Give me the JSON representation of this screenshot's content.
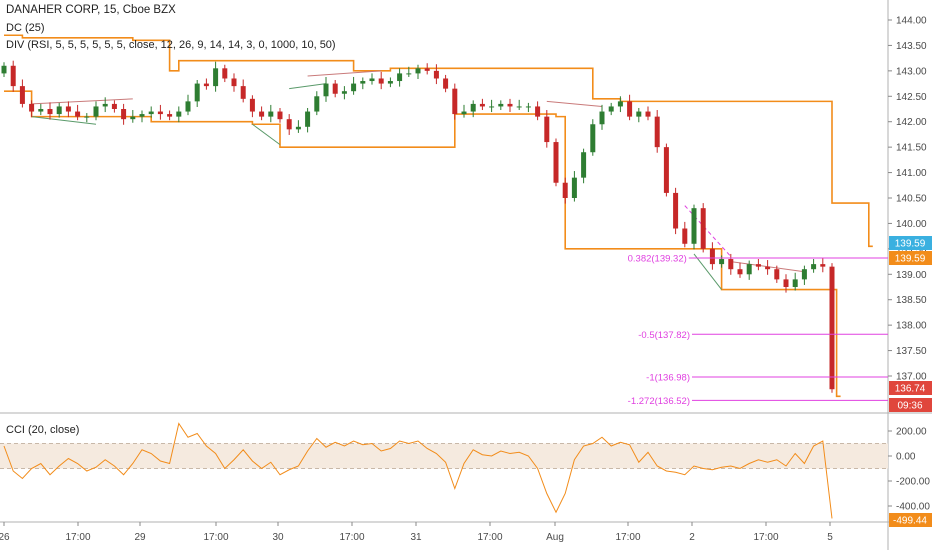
{
  "legend": {
    "symbol": "DANAHER CORP, 15, Cboe BZX",
    "dc": "DC (25)",
    "div": "DIV (RSI, 5, 5, 5, 5, 5, 5, close, 12, 26, 9, 14, 14, 3, 0, 1000, 10, 50)",
    "cci": "CCI (20, close)"
  },
  "colors": {
    "up": "#2e7d32",
    "down": "#c62828",
    "donchian": "#f28c1a",
    "fib": "#e040e0",
    "cci": "#f28c1a",
    "cci_band": "#f5eadf",
    "price_badge": "#e0463c",
    "last_badge": "#3ab0e0",
    "dc_badge": "#f28c1a",
    "divergence_bear": "#c97a7a",
    "divergence_bull": "#5a9a6a"
  },
  "chart_data": [
    {
      "type": "candlestick",
      "x_ticks": [
        "26",
        "17:00",
        "29",
        "17:00",
        "30",
        "17:00",
        "31",
        "17:00",
        "Aug",
        "17:00",
        "2",
        "17:00",
        "5"
      ],
      "y_ticks": [
        "144.00",
        "143.50",
        "143.00",
        "142.50",
        "142.00",
        "141.50",
        "141.00",
        "140.50",
        "140.00",
        "139.50",
        "139.00",
        "138.50",
        "138.00",
        "137.50",
        "137.00"
      ],
      "ylim": [
        136.35,
        144.25
      ],
      "close_samples": [
        143.1,
        142.7,
        142.35,
        142.2,
        142.25,
        142.15,
        142.3,
        142.2,
        142.1,
        142.1,
        142.3,
        142.35,
        142.25,
        142.05,
        142.1,
        142.15,
        142.2,
        142.15,
        142.1,
        142.2,
        142.4,
        142.75,
        142.7,
        143.05,
        142.85,
        142.7,
        142.45,
        142.2,
        142.1,
        142.2,
        142.05,
        141.85,
        141.9,
        142.2,
        142.5,
        142.75,
        142.55,
        142.6,
        142.75,
        142.8,
        142.85,
        142.75,
        142.8,
        142.95,
        142.95,
        143.05,
        143.0,
        142.85,
        142.65,
        142.15,
        142.2,
        142.35,
        142.3,
        142.3,
        142.35,
        142.3,
        142.3,
        142.3,
        142.1,
        141.6,
        140.8,
        140.5,
        140.9,
        141.4,
        141.95,
        142.2,
        142.3,
        142.4,
        142.1,
        142.2,
        142.1,
        141.5,
        140.6,
        139.9,
        139.6,
        140.3,
        139.5,
        139.2,
        139.3,
        139.1,
        139.0,
        139.2,
        139.15,
        139.1,
        138.9,
        138.75,
        138.9,
        139.1,
        139.2,
        139.15,
        136.74
      ],
      "donchian": {
        "upper": [
          [
            0,
            143.7
          ],
          [
            2,
            143.65
          ],
          [
            14,
            143.6
          ],
          [
            18,
            143.0
          ],
          [
            19,
            143.2
          ],
          [
            35,
            143.2
          ],
          [
            38,
            143.0
          ],
          [
            42,
            143.05
          ],
          [
            61,
            143.05
          ],
          [
            64,
            142.45
          ],
          [
            67,
            142.4
          ],
          [
            89,
            142.4
          ],
          [
            90,
            140.4
          ],
          [
            92,
            140.4
          ],
          [
            94,
            139.55
          ]
        ],
        "lower": [
          [
            0,
            142.6
          ],
          [
            3,
            142.1
          ],
          [
            16,
            142.0
          ],
          [
            27,
            141.95
          ],
          [
            30,
            141.5
          ],
          [
            47,
            141.5
          ],
          [
            49,
            142.15
          ],
          [
            60,
            142.1
          ],
          [
            61,
            139.5
          ],
          [
            76,
            139.5
          ],
          [
            78,
            138.7
          ],
          [
            90,
            138.7
          ],
          [
            90.5,
            136.6
          ]
        ]
      },
      "fib_levels": [
        {
          "label": "0.382(139.32)",
          "value": 139.32
        },
        {
          "label": "-0.5(137.82)",
          "value": 137.82
        },
        {
          "label": "-1(136.98)",
          "value": 136.98
        },
        {
          "label": "-1.272(136.52)",
          "value": 136.52
        }
      ],
      "price_labels": {
        "last_high": "139.59",
        "dc_upper": "139.59",
        "last_price": "136.74",
        "countdown": "09:36"
      }
    },
    {
      "type": "line",
      "name": "CCI (20, close)",
      "y_ticks": [
        "200.00",
        "0.00",
        "-200.00",
        "-400.00"
      ],
      "ylim": [
        -560,
        330
      ],
      "band": [
        -100,
        100
      ],
      "values": [
        80,
        -120,
        -180,
        -100,
        -60,
        -150,
        -80,
        -20,
        -60,
        -120,
        -90,
        -30,
        -80,
        -150,
        -60,
        50,
        20,
        -40,
        -60,
        260,
        150,
        180,
        80,
        20,
        -100,
        -30,
        50,
        -40,
        -100,
        -50,
        -150,
        -110,
        -80,
        40,
        140,
        70,
        110,
        80,
        120,
        90,
        100,
        40,
        60,
        120,
        100,
        120,
        60,
        20,
        -50,
        -260,
        -60,
        50,
        10,
        0,
        40,
        20,
        30,
        0,
        -100,
        -300,
        -450,
        -300,
        -30,
        80,
        100,
        150,
        80,
        110,
        90,
        -50,
        30,
        -80,
        -120,
        -130,
        -150,
        -80,
        -100,
        -110,
        -90,
        -80,
        -100,
        -60,
        -30,
        -50,
        -30,
        -80,
        20,
        -60,
        80,
        120,
        -499.44
      ],
      "last_label": "-499.44"
    }
  ]
}
